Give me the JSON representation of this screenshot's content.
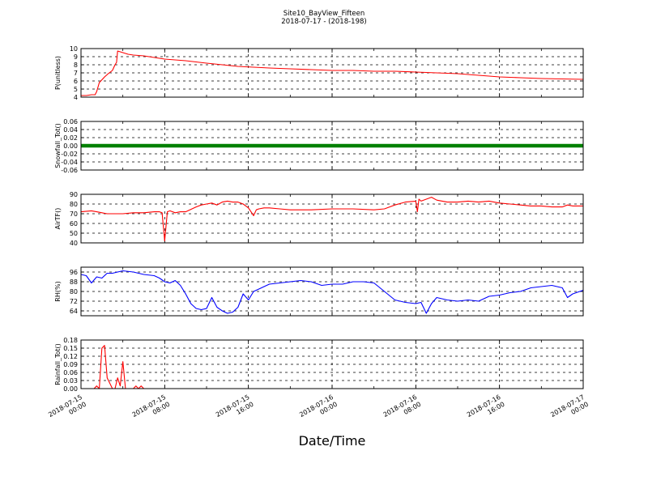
{
  "figure": {
    "title_line1": "Site10_BayView_Fifteen",
    "title_line2": "2018-07-17 - (2018-198)",
    "xlabel": "Date/Time"
  },
  "chart_data": [
    {
      "type": "line",
      "ylabel": "P(unitless)",
      "ylim": [
        4,
        10
      ],
      "yticks": [
        "4",
        "5",
        "6",
        "7",
        "8",
        "9",
        "10"
      ],
      "yticks_values": [
        4,
        5,
        6,
        7,
        8,
        9,
        10
      ],
      "color": "#ff0000",
      "grid": true,
      "x_hours": [
        0,
        1,
        2,
        2.7,
        3,
        3.5,
        4.5,
        5.2,
        6,
        6.5,
        6.8,
        7,
        8,
        9,
        10,
        12,
        14,
        16,
        20,
        24,
        30,
        36,
        40,
        44,
        48,
        52,
        56,
        60,
        64,
        68,
        72,
        76,
        80,
        84,
        88,
        92,
        96
      ],
      "values": [
        4.2,
        4.2,
        4.3,
        4.3,
        4.7,
        5.8,
        6.5,
        6.9,
        7.3,
        8.0,
        8.3,
        9.7,
        9.5,
        9.3,
        9.2,
        9.1,
        8.9,
        8.7,
        8.5,
        8.2,
        7.8,
        7.6,
        7.5,
        7.4,
        7.3,
        7.3,
        7.2,
        7.2,
        7.1,
        7.0,
        6.9,
        6.7,
        6.5,
        6.4,
        6.3,
        6.25,
        6.2
      ]
    },
    {
      "type": "scatter",
      "ylabel": "Snowfall_Tot()",
      "ylim": [
        -0.06,
        0.06
      ],
      "yticks": [
        "-0.06",
        "-0.04",
        "-0.02",
        "0.00",
        "0.02",
        "0.04",
        "0.06"
      ],
      "yticks_values": [
        -0.06,
        -0.04,
        -0.02,
        0,
        0.02,
        0.04,
        0.06
      ],
      "color": "#008000",
      "grid": true,
      "x_hours": [
        0,
        96
      ],
      "values": [
        0,
        0
      ]
    },
    {
      "type": "line",
      "ylabel": "AirTF()",
      "ylim": [
        40,
        90
      ],
      "yticks": [
        "40",
        "50",
        "60",
        "70",
        "80",
        "90"
      ],
      "yticks_values": [
        40,
        50,
        60,
        70,
        80,
        90
      ],
      "color": "#ff0000",
      "grid": true,
      "x_hours": [
        0,
        2,
        3,
        4,
        5,
        6,
        8,
        10,
        12,
        14,
        15,
        15.5,
        15.8,
        16,
        16.5,
        17,
        18,
        19,
        20,
        22,
        23,
        24,
        25,
        26,
        27,
        28,
        29,
        30,
        31,
        32,
        32.5,
        33,
        33.5,
        34,
        35,
        36,
        38,
        40,
        44,
        48,
        52,
        56,
        58,
        60,
        62,
        64,
        64.3,
        64.6,
        65,
        66,
        67,
        68,
        70,
        72,
        74,
        76,
        78,
        80,
        82,
        84,
        86,
        88,
        90,
        92,
        93,
        94,
        96
      ],
      "values": [
        72,
        73,
        72,
        71,
        70,
        70,
        70,
        71,
        71,
        72,
        72,
        71,
        54,
        42,
        72,
        73,
        71,
        72,
        72,
        77,
        79,
        80,
        81,
        79,
        82,
        83,
        82,
        82,
        80,
        76,
        72,
        68,
        74,
        75,
        76,
        76,
        75,
        74,
        74,
        75,
        75,
        74,
        75,
        79,
        82,
        83,
        72,
        85,
        83,
        85,
        87,
        84,
        82,
        82,
        83,
        82,
        83,
        81,
        80,
        79,
        78,
        78,
        77,
        77,
        79,
        78,
        78
      ]
    },
    {
      "type": "line",
      "ylabel": "RH(%)",
      "ylim": [
        60,
        100
      ],
      "yticks": [
        "64",
        "72",
        "80",
        "88",
        "96"
      ],
      "yticks_values": [
        64,
        72,
        80,
        88,
        96
      ],
      "color": "#0000ff",
      "grid": true,
      "x_hours": [
        0,
        1,
        2,
        3,
        4,
        5,
        6,
        8,
        10,
        12,
        14,
        15,
        16,
        17,
        18,
        19,
        20,
        21,
        22,
        23,
        24,
        25,
        26,
        27,
        28,
        29,
        30,
        31,
        32,
        33,
        34,
        35,
        36,
        38,
        40,
        42,
        44,
        46,
        48,
        50,
        52,
        54,
        56,
        58,
        60,
        62,
        64,
        65,
        66,
        67,
        68,
        69,
        70,
        72,
        74,
        76,
        78,
        80,
        82,
        84,
        86,
        88,
        90,
        92,
        93,
        94,
        96
      ],
      "values": [
        94,
        93,
        87,
        92,
        91,
        95,
        95,
        97,
        96,
        94,
        93,
        91,
        88,
        87,
        89,
        85,
        78,
        70,
        66,
        65,
        66,
        75,
        67,
        64,
        62,
        63,
        67,
        78,
        73,
        80,
        82,
        84,
        86,
        87,
        88,
        89,
        88,
        85,
        86,
        86,
        88,
        88,
        87,
        80,
        73,
        71,
        70,
        71,
        62,
        70,
        75,
        74,
        73,
        72,
        73,
        72,
        76,
        77,
        79,
        80,
        83,
        84,
        85,
        83,
        75,
        78,
        81
      ]
    },
    {
      "type": "line",
      "ylabel": "Rainfall_Tot()",
      "ylim": [
        0,
        0.18
      ],
      "yticks": [
        "0.00",
        "0.03",
        "0.06",
        "0.09",
        "0.12",
        "0.15",
        "0.18"
      ],
      "yticks_values": [
        0,
        0.03,
        0.06,
        0.09,
        0.12,
        0.15,
        0.18
      ],
      "color": "#ff0000",
      "grid": true,
      "x_hours": [
        0,
        1,
        2,
        2.5,
        3,
        3.5,
        4,
        4.5,
        5,
        5.5,
        6,
        6.5,
        7,
        7.5,
        8,
        8.5,
        9,
        9.5,
        10,
        10.5,
        11,
        11.5,
        12,
        12.5,
        13,
        14,
        96
      ],
      "values": [
        0,
        0,
        0,
        0,
        0.01,
        0,
        0.15,
        0.16,
        0.04,
        0.02,
        0,
        0,
        0.04,
        0.01,
        0.1,
        0,
        0,
        0,
        0,
        0.01,
        0,
        0.01,
        0,
        0,
        0,
        0,
        0
      ]
    }
  ],
  "x_axis": {
    "min_hours": 0,
    "max_hours": 96,
    "minor_step_hours": 8,
    "ticks": [
      {
        "hours": 0,
        "line1": "2018-07-15",
        "line2": "00:00"
      },
      {
        "hours": 16,
        "line1": "2018-07-15",
        "line2": "08:00"
      },
      {
        "hours": 32,
        "line1": "2018-07-15",
        "line2": "16:00"
      },
      {
        "hours": 48,
        "line1": "2018-07-16",
        "line2": "00:00"
      },
      {
        "hours": 64,
        "line1": "2018-07-16",
        "line2": "08:00"
      },
      {
        "hours": 80,
        "line1": "2018-07-16",
        "line2": "16:00"
      },
      {
        "hours": 96,
        "line1": "2018-07-17",
        "line2": "00:00"
      }
    ]
  }
}
